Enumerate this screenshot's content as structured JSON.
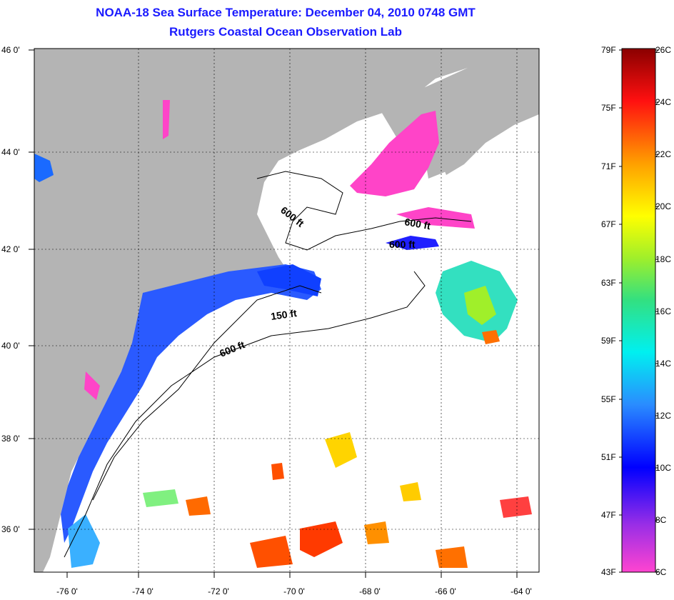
{
  "title": {
    "line1": "NOAA-18 Sea Surface Temperature:  December 04, 2010 0748 GMT",
    "line2": "Rutgers Coastal Ocean Observation Lab"
  },
  "map": {
    "lat_labels": [
      "46 0'",
      "44 0'",
      "42 0'",
      "40 0'",
      "38 0'",
      "36 0'"
    ],
    "lon_labels": [
      "-76 0'",
      "-74 0'",
      "-72 0'",
      "-70 0'",
      "-68 0'",
      "-66 0'",
      "-64 0'"
    ],
    "isobath_labels": [
      "600 ft",
      "600 ft",
      "600 ft",
      "150 ft",
      "600 ft"
    ],
    "colors": {
      "land": "#b4b4b4",
      "ocean": "#ffffff"
    }
  },
  "colorbar": {
    "fahrenheit_labels": [
      "79F",
      "75F",
      "71F",
      "67F",
      "63F",
      "59F",
      "55F",
      "51F",
      "47F",
      "43F"
    ],
    "celsius_labels": [
      "26C",
      "24C",
      "22C",
      "20C",
      "18C",
      "16C",
      "14C",
      "12C",
      "10C",
      "8C",
      "6C"
    ]
  }
}
